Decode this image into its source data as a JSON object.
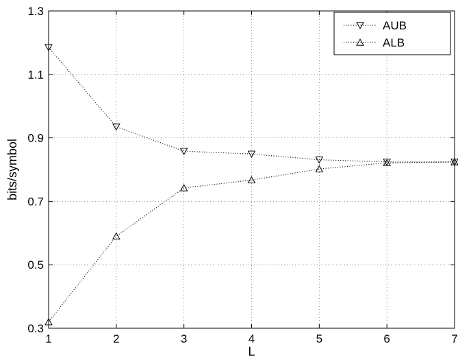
{
  "chart_data": {
    "type": "line",
    "title": "",
    "xlabel": "L",
    "ylabel": "bits/symbol",
    "x": [
      1,
      2,
      3,
      4,
      5,
      6,
      7
    ],
    "xlim": [
      1,
      7
    ],
    "ylim": [
      0.3,
      1.3
    ],
    "xticks": [
      1,
      2,
      3,
      4,
      5,
      6,
      7
    ],
    "yticks": [
      0.3,
      0.5,
      0.7,
      0.9,
      1.1,
      1.3
    ],
    "ytick_labels": [
      "0.3",
      "0.5",
      "0.7",
      "0.9",
      "1.1",
      "1.3"
    ],
    "grid": true,
    "legend_position": "top-right",
    "series": [
      {
        "name": "AUB",
        "marker": "triangle-down",
        "line_style": "dotted",
        "color": "#000000",
        "values": [
          1.185,
          0.935,
          0.858,
          0.849,
          0.831,
          0.824,
          0.824
        ]
      },
      {
        "name": "ALB",
        "marker": "triangle-up",
        "line_style": "dotted",
        "color": "#000000",
        "values": [
          0.32,
          0.59,
          0.742,
          0.767,
          0.802,
          0.821,
          0.824
        ]
      }
    ]
  }
}
